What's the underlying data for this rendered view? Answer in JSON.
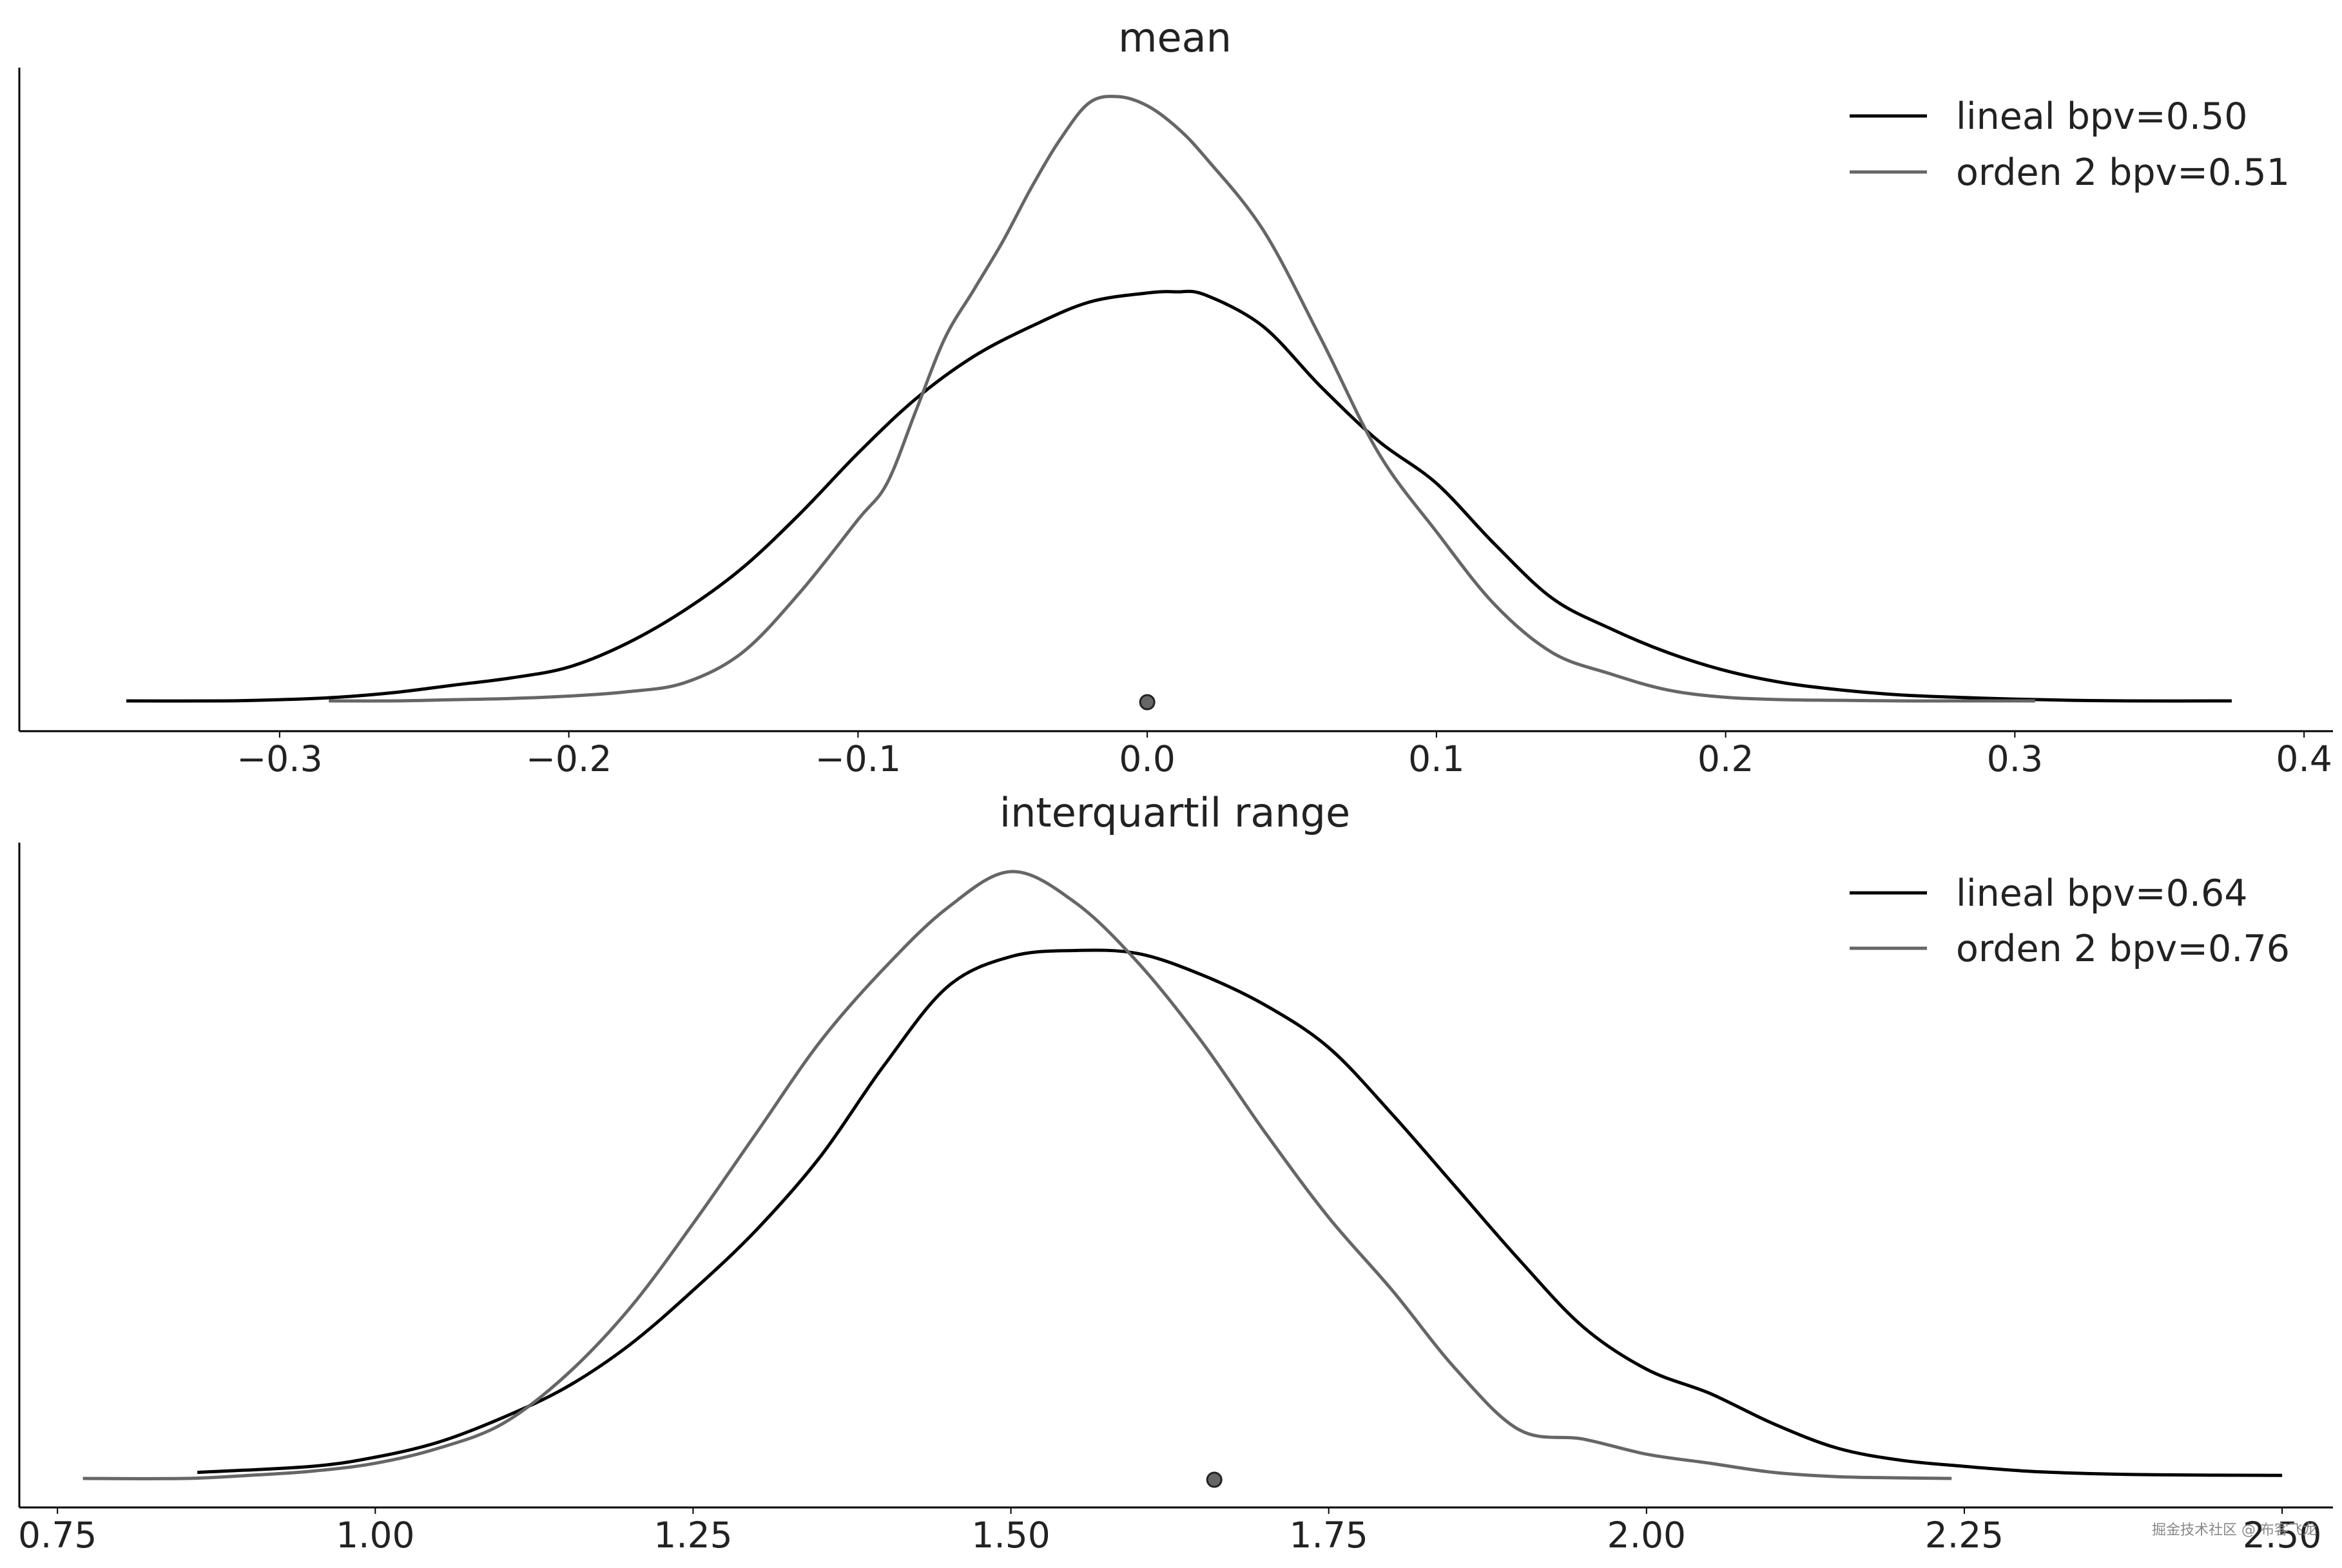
{
  "chart_data": [
    {
      "type": "line",
      "title": "mean",
      "xlabel": "",
      "ylabel": "",
      "xlim": [
        -0.39,
        0.41
      ],
      "y_ticks_shown": false,
      "grid": false,
      "legend_position": "top-right",
      "x_ticks": [
        {
          "value": -0.3,
          "label": "−0.3"
        },
        {
          "value": -0.2,
          "label": "−0.2"
        },
        {
          "value": -0.1,
          "label": "−0.1"
        },
        {
          "value": 0.0,
          "label": "0.0"
        },
        {
          "value": 0.1,
          "label": "0.1"
        },
        {
          "value": 0.2,
          "label": "0.2"
        },
        {
          "value": 0.3,
          "label": "0.3"
        },
        {
          "value": 0.4,
          "label": "0.4"
        }
      ],
      "reference_point": {
        "x": 0.0,
        "color": "#666666"
      },
      "series": [
        {
          "name": "lineal bpv=0.50",
          "color": "#000000",
          "x": [
            -0.353,
            -0.32,
            -0.3,
            -0.28,
            -0.26,
            -0.24,
            -0.22,
            -0.2,
            -0.18,
            -0.16,
            -0.14,
            -0.12,
            -0.1,
            -0.08,
            -0.06,
            -0.04,
            -0.02,
            0.0,
            0.01,
            0.02,
            0.04,
            0.06,
            0.08,
            0.1,
            0.12,
            0.14,
            0.16,
            0.18,
            0.2,
            0.22,
            0.24,
            0.26,
            0.28,
            0.3,
            0.32,
            0.34,
            0.375
          ],
          "y": [
            0.0,
            0.0,
            0.002,
            0.006,
            0.014,
            0.026,
            0.038,
            0.056,
            0.095,
            0.15,
            0.22,
            0.31,
            0.41,
            0.5,
            0.57,
            0.62,
            0.66,
            0.675,
            0.677,
            0.672,
            0.62,
            0.52,
            0.43,
            0.36,
            0.26,
            0.17,
            0.12,
            0.08,
            0.05,
            0.03,
            0.018,
            0.01,
            0.006,
            0.003,
            0.001,
            0.0,
            0.0
          ]
        },
        {
          "name": "orden 2 bpv=0.51",
          "color": "#666666",
          "x": [
            -0.283,
            -0.26,
            -0.24,
            -0.22,
            -0.2,
            -0.18,
            -0.16,
            -0.14,
            -0.12,
            -0.1,
            -0.09,
            -0.08,
            -0.07,
            -0.06,
            -0.05,
            -0.04,
            -0.03,
            -0.02,
            -0.01,
            0.0,
            0.01,
            0.02,
            0.04,
            0.06,
            0.08,
            0.1,
            0.12,
            0.14,
            0.16,
            0.18,
            0.2,
            0.22,
            0.24,
            0.26,
            0.28,
            0.307
          ],
          "y": [
            0.0,
            0.0,
            0.002,
            0.004,
            0.008,
            0.015,
            0.03,
            0.08,
            0.18,
            0.3,
            0.36,
            0.48,
            0.6,
            0.68,
            0.76,
            0.85,
            0.93,
            0.99,
            1.0,
            0.985,
            0.95,
            0.9,
            0.78,
            0.6,
            0.41,
            0.28,
            0.16,
            0.08,
            0.045,
            0.018,
            0.006,
            0.002,
            0.001,
            0.0,
            0.0,
            0.0
          ]
        }
      ]
    },
    {
      "type": "line",
      "title": "interquartil range",
      "xlabel": "",
      "ylabel": "",
      "xlim": [
        0.72,
        2.54
      ],
      "y_ticks_shown": false,
      "grid": false,
      "legend_position": "top-right",
      "x_ticks": [
        {
          "value": 0.75,
          "label": "0.75"
        },
        {
          "value": 1.0,
          "label": "1.00"
        },
        {
          "value": 1.25,
          "label": "1.25"
        },
        {
          "value": 1.5,
          "label": "1.50"
        },
        {
          "value": 1.75,
          "label": "1.75"
        },
        {
          "value": 2.0,
          "label": "2.00"
        },
        {
          "value": 2.25,
          "label": "2.25"
        },
        {
          "value": 2.5,
          "label": "2.50"
        }
      ],
      "reference_point": {
        "x": 1.66,
        "color": "#666666"
      },
      "series": [
        {
          "name": "lineal bpv=0.64",
          "color": "#000000",
          "x": [
            0.86,
            0.95,
            1.0,
            1.05,
            1.1,
            1.15,
            1.2,
            1.25,
            1.3,
            1.35,
            1.4,
            1.45,
            1.5,
            1.55,
            1.6,
            1.65,
            1.7,
            1.75,
            1.8,
            1.85,
            1.9,
            1.95,
            2.0,
            2.05,
            2.1,
            2.15,
            2.2,
            2.25,
            2.3,
            2.35,
            2.4,
            2.5
          ],
          "y": [
            0.01,
            0.02,
            0.035,
            0.06,
            0.1,
            0.15,
            0.22,
            0.31,
            0.41,
            0.53,
            0.68,
            0.81,
            0.86,
            0.87,
            0.865,
            0.83,
            0.78,
            0.71,
            0.6,
            0.48,
            0.36,
            0.25,
            0.18,
            0.14,
            0.09,
            0.05,
            0.03,
            0.02,
            0.012,
            0.008,
            0.006,
            0.005
          ]
        },
        {
          "name": "orden 2 bpv=0.76",
          "color": "#666666",
          "x": [
            0.77,
            0.85,
            0.9,
            0.95,
            1.0,
            1.05,
            1.1,
            1.15,
            1.2,
            1.25,
            1.3,
            1.35,
            1.4,
            1.45,
            1.5,
            1.55,
            1.6,
            1.65,
            1.7,
            1.75,
            1.8,
            1.85,
            1.9,
            1.95,
            2.0,
            2.05,
            2.1,
            2.15,
            2.2,
            2.24
          ],
          "y": [
            0.0,
            0.0,
            0.005,
            0.012,
            0.025,
            0.05,
            0.09,
            0.17,
            0.28,
            0.42,
            0.57,
            0.72,
            0.84,
            0.94,
            1.0,
            0.95,
            0.85,
            0.72,
            0.57,
            0.43,
            0.31,
            0.18,
            0.08,
            0.065,
            0.04,
            0.025,
            0.01,
            0.003,
            0.001,
            0.0
          ]
        }
      ]
    }
  ],
  "watermark": "掘金技术社区 @ 布客飞龙"
}
